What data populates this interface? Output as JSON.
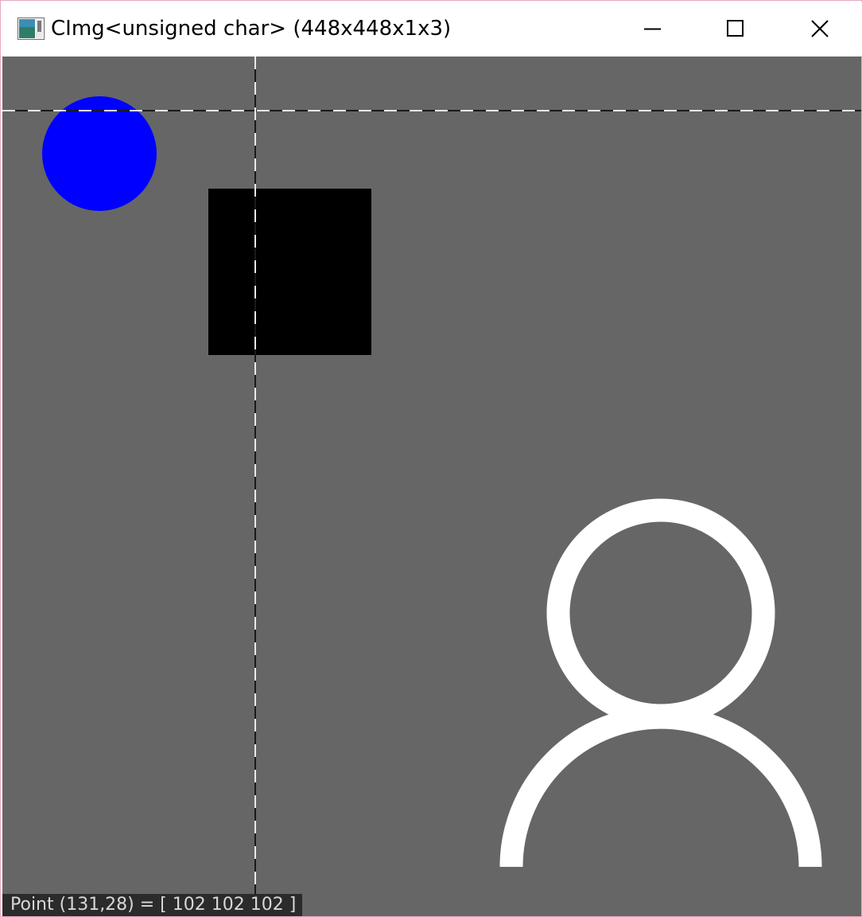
{
  "window": {
    "title": "CImg<unsigned char> (448x448x1x3)",
    "icon": "cimg-app-icon",
    "controls": {
      "minimize": "minimize-icon",
      "maximize": "maximize-icon",
      "close": "close-icon"
    }
  },
  "image": {
    "width": 448,
    "height": 448,
    "background_color": "#666666",
    "crosshair_point": {
      "x": 131,
      "y": 28
    },
    "shapes": {
      "circle": {
        "color": "#0000ff",
        "icon": "filled-circle"
      },
      "square": {
        "color": "#000000",
        "icon": "filled-rectangle"
      },
      "person": {
        "color": "#ffffff",
        "icon": "user-outline-icon"
      }
    }
  },
  "status": {
    "text": "Point (131,28) = [ 102 102 102 ]"
  },
  "colors": {
    "window_border": "#e6a8c4",
    "titlebar": "#ffffff",
    "statusbar_bg": "#2b2b2b",
    "statusbar_text": "#d8d8d8"
  }
}
